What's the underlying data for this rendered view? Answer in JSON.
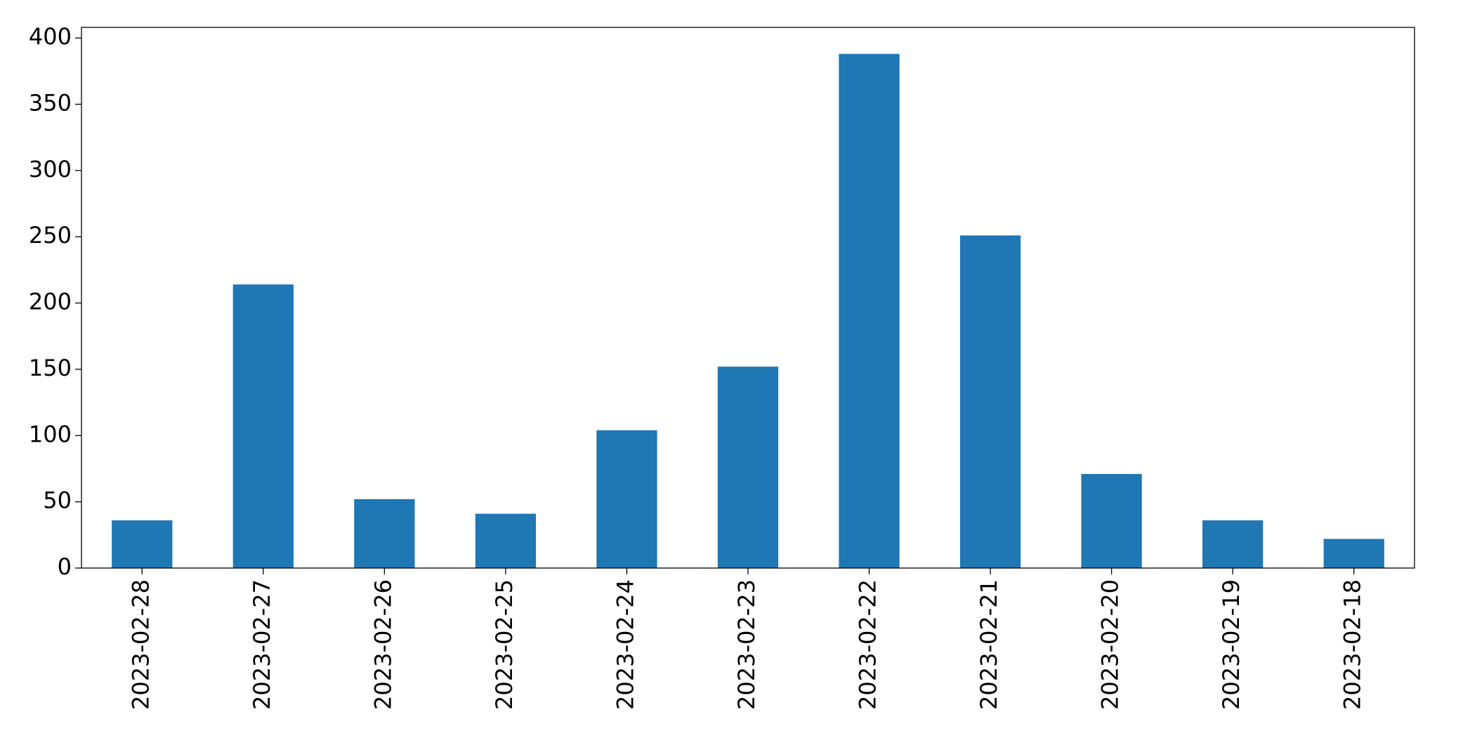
{
  "chart_data": {
    "type": "bar",
    "categories": [
      "2023-02-28",
      "2023-02-27",
      "2023-02-26",
      "2023-02-25",
      "2023-02-24",
      "2023-02-23",
      "2023-02-22",
      "2023-02-21",
      "2023-02-20",
      "2023-02-19",
      "2023-02-18"
    ],
    "values": [
      36,
      214,
      52,
      41,
      104,
      152,
      388,
      251,
      71,
      36,
      22
    ],
    "color": "#1f77b4",
    "ylim": [
      0,
      408
    ],
    "yticks": [
      0,
      50,
      100,
      150,
      200,
      250,
      300,
      350,
      400
    ],
    "grid": false
  }
}
